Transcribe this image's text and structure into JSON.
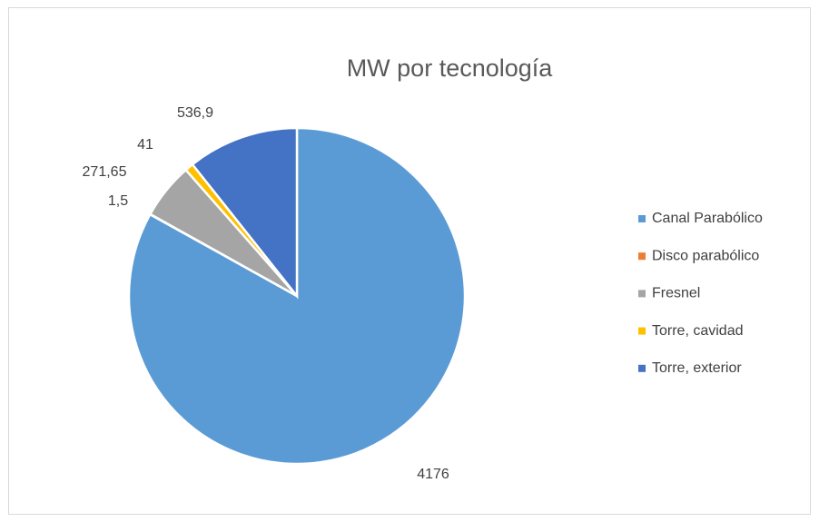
{
  "chart_data": {
    "type": "pie",
    "title": "MW por tecnología",
    "categories": [
      "Canal Parabólico",
      "Disco parabólico",
      "Fresnel",
      "Torre, cavidad",
      "Torre, exterior"
    ],
    "values": [
      4176,
      1.5,
      271.65,
      41,
      536.9
    ],
    "value_labels": [
      "4176",
      "1,5",
      "271,65",
      "41",
      "536,9"
    ],
    "colors": [
      "#5b9bd5",
      "#ed7d31",
      "#a5a5a5",
      "#ffc000",
      "#4472c4"
    ],
    "legend": "right"
  }
}
